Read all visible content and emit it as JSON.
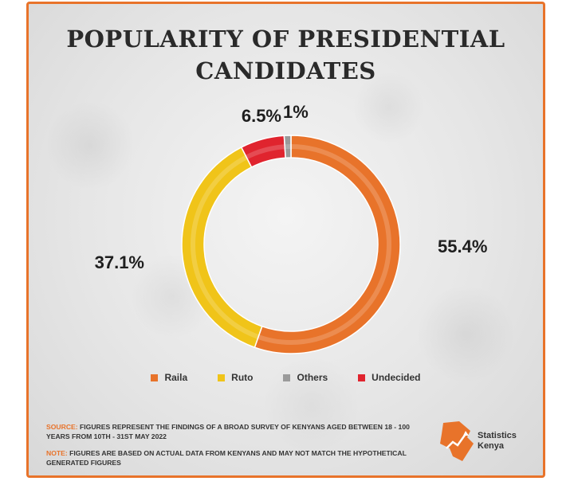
{
  "title_lines": [
    "POPULARITY OF PRESIDENTIAL",
    "CANDIDATES"
  ],
  "chart_data": {
    "type": "pie",
    "style": "donut",
    "categories": [
      "Raila",
      "Ruto",
      "Others",
      "Undecided"
    ],
    "values": [
      55.4,
      37.1,
      1,
      6.5
    ],
    "data_labels": [
      "55.4%",
      "37.1%",
      "1%",
      "6.5%"
    ],
    "colors": [
      "#e8732a",
      "#f0c419",
      "#9a9a9a",
      "#e0242e"
    ],
    "legend_position": "bottom"
  },
  "legend": [
    {
      "label": "Raila",
      "color": "#e8732a"
    },
    {
      "label": "Ruto",
      "color": "#f0c419"
    },
    {
      "label": "Others",
      "color": "#9a9a9a"
    },
    {
      "label": "Undecided",
      "color": "#e0242e"
    }
  ],
  "source": {
    "label": "SOURCE:",
    "text": "FIGURES REPRESENT THE FINDINGS OF A BROAD SURVEY OF KENYANS AGED BETWEEN 18 - 100 YEARS FROM 10TH - 31ST MAY 2022"
  },
  "note": {
    "label": "NOTE:",
    "text": "FIGURES ARE BASED ON ACTUAL DATA FROM KENYANS AND MAY NOT MATCH THE HYPOTHETICAL GENERATED FIGURES"
  },
  "logo": {
    "line1": "Statistics",
    "line2": "Kenya",
    "color": "#e8732a"
  }
}
